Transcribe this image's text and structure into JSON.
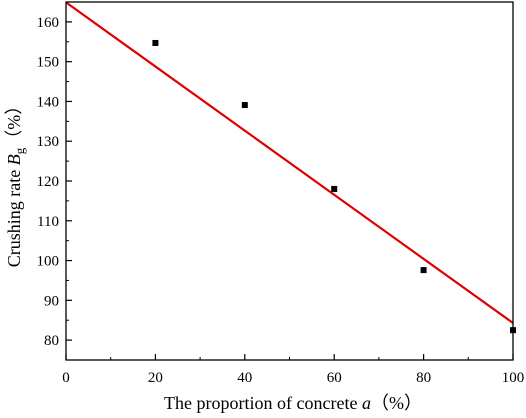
{
  "chart_data": {
    "type": "scatter",
    "xlabel": {
      "text": "The proportion of concrete ",
      "var": "a",
      "unit": "（%）"
    },
    "ylabel": {
      "text": "Crushing rate ",
      "var": "B",
      "sub": "g",
      "unit": "（%）"
    },
    "xlim": [
      0,
      100
    ],
    "ylim": [
      75,
      165
    ],
    "xticks": [
      0,
      20,
      40,
      60,
      80,
      100
    ],
    "yticks": [
      80,
      90,
      100,
      110,
      120,
      130,
      140,
      150,
      160
    ],
    "grid": false,
    "legend": "none",
    "points": [
      {
        "x": 20,
        "y": 154.7
      },
      {
        "x": 40,
        "y": 139.1
      },
      {
        "x": 60,
        "y": 118.0
      },
      {
        "x": 80,
        "y": 97.6
      },
      {
        "x": 100,
        "y": 82.5
      }
    ],
    "fit_line": {
      "x": [
        0,
        100
      ],
      "y": [
        164.9,
        84.3
      ],
      "color": "#e00000"
    },
    "marker_color": "#000000"
  }
}
